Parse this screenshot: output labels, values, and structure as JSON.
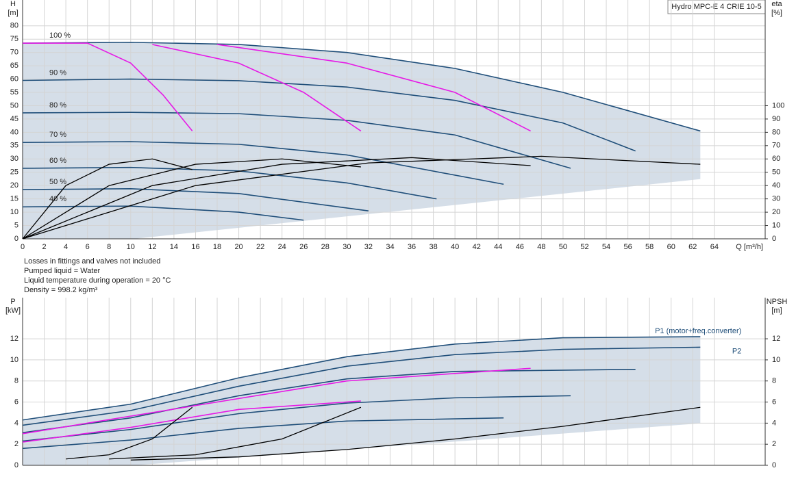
{
  "chart_data": [
    {
      "type": "line",
      "title": "Hydro MPC-E 4 CRIE 10-5",
      "ylabel": [
        "H",
        "[m]"
      ],
      "y2label": [
        "eta",
        "[%]"
      ],
      "xlabel": "Q [m³/h]",
      "xlim": [
        0,
        68.7
      ],
      "ylim": [
        0,
        89.7
      ],
      "y2lim": [
        0,
        179.4
      ],
      "grid": true,
      "series_label_side": "left",
      "xticks": [
        0,
        2,
        4,
        6,
        8,
        10,
        12,
        14,
        16,
        18,
        20,
        22,
        24,
        26,
        28,
        30,
        32,
        34,
        36,
        38,
        40,
        42,
        44,
        46,
        48,
        50,
        52,
        54,
        56,
        58,
        60,
        62,
        64
      ],
      "yticks": [
        0,
        5,
        10,
        15,
        20,
        25,
        30,
        35,
        40,
        45,
        50,
        55,
        60,
        65,
        70,
        75,
        80
      ],
      "y2ticks": [
        0,
        10,
        20,
        30,
        40,
        50,
        60,
        70,
        80,
        90,
        100
      ],
      "series": [
        {
          "name": "100 %",
          "color": "#1f4e79",
          "x": [
            0,
            10,
            20,
            30,
            40,
            50,
            62.7
          ],
          "values": [
            73.5,
            73.8,
            73,
            70,
            64,
            55,
            40.5
          ]
        },
        {
          "name": "90 %",
          "color": "#1f4e79",
          "x": [
            0,
            10,
            20,
            30,
            40,
            50,
            56.7
          ],
          "values": [
            59.5,
            60,
            59.4,
            57,
            52,
            43.5,
            33
          ]
        },
        {
          "name": "80 %",
          "color": "#1f4e79",
          "x": [
            0,
            10,
            20,
            30,
            40,
            50.7
          ],
          "values": [
            47.3,
            47.5,
            47,
            44.5,
            39,
            26.5
          ]
        },
        {
          "name": "70 %",
          "color": "#1f4e79",
          "x": [
            0,
            10,
            20,
            30,
            44.5
          ],
          "values": [
            36.2,
            36.5,
            35.5,
            31.5,
            20.5
          ]
        },
        {
          "name": "60 %",
          "color": "#1f4e79",
          "x": [
            0,
            10,
            20,
            30,
            38.3
          ],
          "values": [
            26.5,
            26.8,
            25.5,
            21,
            15
          ]
        },
        {
          "name": "50 %",
          "color": "#1f4e79",
          "x": [
            0,
            10,
            20,
            32
          ],
          "values": [
            18.5,
            18.8,
            17,
            10.5
          ]
        },
        {
          "name": "40 %",
          "color": "#1f4e79",
          "x": [
            0,
            10,
            20,
            26
          ],
          "values": [
            12,
            12.3,
            10,
            7
          ]
        },
        {
          "color": "#e619e6",
          "x": [
            0,
            6,
            10,
            13,
            15.7
          ],
          "values": [
            73.5,
            73.5,
            66,
            54,
            40.5
          ]
        },
        {
          "color": "#e619e6",
          "x": [
            12,
            20,
            26,
            31.3
          ],
          "values": [
            73,
            66,
            55,
            40.5
          ]
        },
        {
          "color": "#e619e6",
          "x": [
            18,
            30,
            40,
            47
          ],
          "values": [
            73,
            66,
            55,
            40.5
          ]
        },
        {
          "color": "#000000",
          "axis": "y2",
          "x": [
            0,
            4,
            8,
            12,
            15.7
          ],
          "values": [
            0,
            40,
            56,
            60,
            52
          ]
        },
        {
          "color": "#000000",
          "axis": "y2",
          "x": [
            0,
            8,
            16,
            24,
            31.3
          ],
          "values": [
            0,
            40,
            56,
            60,
            54
          ]
        },
        {
          "color": "#000000",
          "axis": "y2",
          "x": [
            0,
            12,
            24,
            36,
            47
          ],
          "values": [
            0,
            40,
            56,
            61,
            55
          ]
        },
        {
          "color": "#000000",
          "axis": "y2",
          "x": [
            0,
            16,
            32,
            48,
            62.7
          ],
          "values": [
            0,
            40,
            57,
            62,
            56
          ]
        }
      ]
    },
    {
      "type": "line",
      "ylabel": [
        "P",
        "[kW]"
      ],
      "y2label": [
        "NPSH",
        "[m]"
      ],
      "notes": [
        "Losses in fittings and valves not included",
        "Pumped liquid = Water",
        "Liquid temperature during operation = 20 °C",
        "Density = 998.2 kg/m³"
      ],
      "xlim": [
        0,
        68.7
      ],
      "ylim": [
        0,
        15.9
      ],
      "y2lim": [
        0,
        15.9
      ],
      "grid": true,
      "series_label_side": "right",
      "yticks": [
        0,
        2,
        4,
        6,
        8,
        10,
        12
      ],
      "y2ticks": [
        0,
        2,
        4,
        6,
        8,
        10,
        12
      ],
      "series": [
        {
          "name": "P1 (motor+freq.converter)",
          "color": "#1f4e79",
          "x": [
            0,
            10,
            20,
            30,
            40,
            50,
            62.7
          ],
          "values": [
            4.3,
            5.8,
            8.3,
            10.3,
            11.5,
            12.1,
            12.2
          ]
        },
        {
          "name": "P2",
          "color": "#1f4e79",
          "x": [
            0,
            10,
            20,
            30,
            40,
            50,
            62.7
          ],
          "values": [
            3.8,
            5.2,
            7.5,
            9.4,
            10.5,
            11,
            11.2
          ]
        },
        {
          "color": "#1f4e79",
          "x": [
            0,
            10,
            20,
            30,
            40,
            56.7
          ],
          "values": [
            3.1,
            4.5,
            6.6,
            8.2,
            8.9,
            9.1
          ]
        },
        {
          "color": "#1f4e79",
          "x": [
            0,
            10,
            20,
            30,
            40,
            50.7
          ],
          "values": [
            2.3,
            3.4,
            4.9,
            5.9,
            6.4,
            6.6
          ]
        },
        {
          "color": "#1f4e79",
          "x": [
            0,
            10,
            20,
            30,
            44.5
          ],
          "values": [
            1.6,
            2.4,
            3.5,
            4.2,
            4.5
          ]
        },
        {
          "color": "#e619e6",
          "x": [
            0,
            10,
            20,
            31.3
          ],
          "values": [
            2.2,
            3.6,
            5.3,
            6.1
          ]
        },
        {
          "color": "#e619e6",
          "x": [
            0,
            15,
            30,
            47
          ],
          "values": [
            3.0,
            5.5,
            8.0,
            9.2
          ]
        },
        {
          "color": "#000000",
          "axis": "y2",
          "x": [
            4,
            8,
            12,
            15.7
          ],
          "values": [
            0.6,
            1,
            2.5,
            5.5
          ]
        },
        {
          "color": "#000000",
          "axis": "y2",
          "x": [
            8,
            16,
            24,
            31.3
          ],
          "values": [
            0.6,
            1,
            2.5,
            5.5
          ]
        },
        {
          "color": "#000000",
          "axis": "y2",
          "x": [
            10,
            20,
            30,
            40,
            50,
            62.7
          ],
          "values": [
            0.5,
            0.8,
            1.5,
            2.5,
            3.7,
            5.5
          ]
        }
      ]
    }
  ]
}
